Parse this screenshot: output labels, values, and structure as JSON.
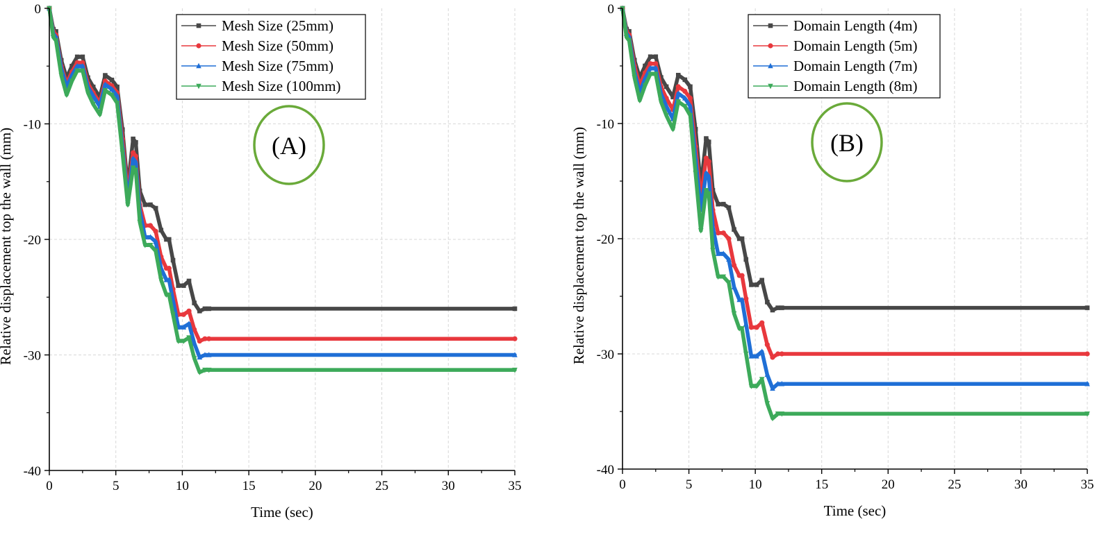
{
  "chart_data": [
    {
      "type": "line",
      "panel_label": "(A)",
      "xlabel": "Time (sec)",
      "ylabel": "Relative displacement top the wall (mm)",
      "xlim": [
        0,
        35
      ],
      "ylim": [
        -40,
        0
      ],
      "xticks": [
        0,
        5,
        10,
        15,
        20,
        25,
        30,
        35
      ],
      "yticks": [
        0,
        -10,
        -20,
        -30,
        -40
      ],
      "grid": true,
      "legend_position": "top-center",
      "series": [
        {
          "name": "Mesh Size (25mm)",
          "color": "#474747",
          "marker": "square",
          "x": [
            0,
            0.3,
            0.5,
            0.9,
            1.3,
            1.7,
            2.1,
            2.5,
            2.9,
            3.3,
            3.8,
            4.2,
            4.7,
            5.1,
            5.5,
            5.9,
            6.3,
            6.5,
            6.8,
            7.2,
            7.6,
            8.0,
            8.4,
            8.8,
            9.0,
            9.3,
            9.7,
            10.1,
            10.5,
            10.9,
            11.3,
            11.7,
            12.0,
            35
          ],
          "y": [
            0,
            -1.8,
            -2.0,
            -4.5,
            -6.0,
            -5.0,
            -4.2,
            -4.2,
            -6.0,
            -6.8,
            -7.7,
            -5.8,
            -6.2,
            -6.8,
            -10.5,
            -15.5,
            -11.3,
            -11.6,
            -15.8,
            -17.0,
            -17.0,
            -17.3,
            -19.2,
            -20.0,
            -20.0,
            -21.8,
            -24.0,
            -24.0,
            -23.6,
            -25.5,
            -26.2,
            -26.0,
            -26.0,
            -26.0
          ]
        },
        {
          "name": "Mesh Size (50mm)",
          "color": "#e8383d",
          "marker": "circle",
          "x": [
            0,
            0.3,
            0.5,
            0.9,
            1.3,
            1.7,
            2.1,
            2.5,
            2.9,
            3.3,
            3.8,
            4.2,
            4.7,
            5.1,
            5.5,
            5.9,
            6.3,
            6.5,
            6.8,
            7.2,
            7.6,
            8.0,
            8.4,
            8.8,
            9.0,
            9.3,
            9.7,
            10.1,
            10.5,
            10.9,
            11.3,
            11.7,
            12.0,
            35
          ],
          "y": [
            0,
            -2.0,
            -2.3,
            -5.0,
            -6.5,
            -5.5,
            -4.7,
            -4.7,
            -6.5,
            -7.3,
            -8.2,
            -6.3,
            -6.7,
            -7.3,
            -11.3,
            -16.0,
            -12.5,
            -12.8,
            -17.0,
            -18.8,
            -18.8,
            -19.3,
            -21.5,
            -22.5,
            -22.5,
            -24.3,
            -26.5,
            -26.5,
            -26.2,
            -27.8,
            -28.8,
            -28.6,
            -28.6,
            -28.6
          ]
        },
        {
          "name": "Mesh Size (75mm)",
          "color": "#1f6fd6",
          "marker": "triangle-up",
          "x": [
            0,
            0.3,
            0.5,
            0.9,
            1.3,
            1.7,
            2.1,
            2.5,
            2.9,
            3.3,
            3.8,
            4.2,
            4.7,
            5.1,
            5.5,
            5.9,
            6.3,
            6.5,
            6.8,
            7.2,
            7.6,
            8.0,
            8.4,
            8.8,
            9.0,
            9.3,
            9.7,
            10.1,
            10.5,
            10.9,
            11.3,
            11.7,
            12.0,
            35
          ],
          "y": [
            0,
            -2.2,
            -2.5,
            -5.2,
            -6.8,
            -5.8,
            -5.0,
            -5.0,
            -6.8,
            -7.6,
            -8.5,
            -6.6,
            -7.0,
            -7.6,
            -12.0,
            -16.5,
            -13.0,
            -13.3,
            -17.5,
            -19.8,
            -19.8,
            -20.2,
            -22.5,
            -23.5,
            -23.5,
            -25.3,
            -27.6,
            -27.6,
            -27.3,
            -29.0,
            -30.2,
            -30.0,
            -30.0,
            -30.0
          ]
        },
        {
          "name": "Mesh Size (100mm)",
          "color": "#3daa5a",
          "marker": "triangle-down",
          "x": [
            0,
            0.3,
            0.5,
            0.9,
            1.3,
            1.7,
            2.1,
            2.5,
            2.9,
            3.3,
            3.8,
            4.2,
            4.7,
            5.1,
            5.5,
            5.9,
            6.3,
            6.5,
            6.8,
            7.2,
            7.6,
            8.0,
            8.4,
            8.8,
            9.0,
            9.3,
            9.7,
            10.1,
            10.5,
            10.9,
            11.3,
            11.7,
            12.0,
            35
          ],
          "y": [
            0,
            -2.5,
            -2.8,
            -5.8,
            -7.5,
            -6.3,
            -5.4,
            -5.4,
            -7.3,
            -8.3,
            -9.2,
            -7.1,
            -7.5,
            -8.2,
            -12.5,
            -17.0,
            -13.8,
            -14.0,
            -18.5,
            -20.5,
            -20.5,
            -21.0,
            -23.5,
            -24.8,
            -24.8,
            -26.5,
            -28.8,
            -28.8,
            -28.5,
            -30.3,
            -31.5,
            -31.3,
            -31.3,
            -31.3
          ]
        }
      ]
    },
    {
      "type": "line",
      "panel_label": "(B)",
      "xlabel": "Time (sec)",
      "ylabel": "Relative displacement top the wall (mm)",
      "xlim": [
        0,
        35
      ],
      "ylim": [
        -40,
        0
      ],
      "xticks": [
        0,
        5,
        10,
        15,
        20,
        25,
        30,
        35
      ],
      "yticks": [
        0,
        -10,
        -20,
        -30,
        -40
      ],
      "grid": true,
      "legend_position": "top-center",
      "series": [
        {
          "name": "Domain Length (4m)",
          "color": "#474747",
          "marker": "square",
          "x": [
            0,
            0.3,
            0.5,
            0.9,
            1.3,
            1.7,
            2.1,
            2.5,
            2.9,
            3.3,
            3.8,
            4.2,
            4.7,
            5.1,
            5.5,
            5.9,
            6.3,
            6.5,
            6.8,
            7.2,
            7.6,
            8.0,
            8.4,
            8.8,
            9.0,
            9.3,
            9.7,
            10.1,
            10.5,
            10.9,
            11.3,
            11.7,
            12.0,
            35
          ],
          "y": [
            0,
            -1.8,
            -2.0,
            -4.5,
            -6.0,
            -5.0,
            -4.2,
            -4.2,
            -6.0,
            -6.8,
            -7.7,
            -5.8,
            -6.2,
            -6.8,
            -10.5,
            -15.5,
            -11.3,
            -11.6,
            -15.8,
            -17.0,
            -17.0,
            -17.3,
            -19.2,
            -20.0,
            -20.0,
            -21.8,
            -24.0,
            -24.0,
            -23.6,
            -25.5,
            -26.2,
            -26.0,
            -26.0,
            -26.0
          ]
        },
        {
          "name": "Domain Length (5m)",
          "color": "#e8383d",
          "marker": "circle",
          "x": [
            0,
            0.3,
            0.5,
            0.9,
            1.3,
            1.7,
            2.1,
            2.5,
            2.9,
            3.3,
            3.8,
            4.2,
            4.7,
            5.1,
            5.5,
            5.9,
            6.3,
            6.5,
            6.8,
            7.2,
            7.6,
            8.0,
            8.4,
            8.8,
            9.0,
            9.3,
            9.7,
            10.1,
            10.5,
            10.9,
            11.3,
            11.7,
            12.0,
            35
          ],
          "y": [
            0,
            -2.0,
            -2.3,
            -5.0,
            -6.7,
            -5.6,
            -4.8,
            -4.8,
            -6.8,
            -7.8,
            -8.8,
            -6.8,
            -7.2,
            -7.8,
            -12.0,
            -16.5,
            -13.0,
            -13.3,
            -17.5,
            -19.5,
            -19.5,
            -20.0,
            -22.3,
            -23.2,
            -23.2,
            -25.2,
            -27.7,
            -27.7,
            -27.3,
            -29.2,
            -30.3,
            -30.0,
            -30.0,
            -30.0
          ]
        },
        {
          "name": "Domain Length (7m)",
          "color": "#1f6fd6",
          "marker": "triangle-up",
          "x": [
            0,
            0.3,
            0.5,
            0.9,
            1.3,
            1.7,
            2.1,
            2.5,
            2.9,
            3.3,
            3.8,
            4.2,
            4.7,
            5.1,
            5.5,
            5.9,
            6.3,
            6.5,
            6.8,
            7.2,
            7.6,
            8.0,
            8.4,
            8.8,
            9.0,
            9.3,
            9.7,
            10.1,
            10.5,
            10.9,
            11.3,
            11.7,
            12.0,
            35
          ],
          "y": [
            0,
            -2.2,
            -2.5,
            -5.5,
            -7.3,
            -6.1,
            -5.2,
            -5.2,
            -7.4,
            -8.5,
            -9.6,
            -7.4,
            -7.8,
            -8.5,
            -13.0,
            -17.5,
            -14.3,
            -14.6,
            -19.0,
            -21.3,
            -21.3,
            -21.8,
            -24.2,
            -25.3,
            -25.3,
            -27.4,
            -30.2,
            -30.2,
            -29.8,
            -31.8,
            -33.0,
            -32.6,
            -32.6,
            -32.6
          ]
        },
        {
          "name": "Domain Length (8m)",
          "color": "#3daa5a",
          "marker": "triangle-down",
          "x": [
            0,
            0.3,
            0.5,
            0.9,
            1.3,
            1.7,
            2.1,
            2.5,
            2.9,
            3.3,
            3.8,
            4.2,
            4.7,
            5.1,
            5.5,
            5.9,
            6.3,
            6.5,
            6.8,
            7.2,
            7.6,
            8.0,
            8.4,
            8.8,
            9.0,
            9.3,
            9.7,
            10.1,
            10.5,
            10.9,
            11.3,
            11.7,
            12.0,
            35
          ],
          "y": [
            0,
            -2.5,
            -2.8,
            -6.0,
            -8.0,
            -6.7,
            -5.7,
            -5.7,
            -8.1,
            -9.3,
            -10.5,
            -8.1,
            -8.5,
            -9.3,
            -14.3,
            -19.3,
            -15.8,
            -16.1,
            -21.0,
            -23.3,
            -23.3,
            -23.8,
            -26.5,
            -27.8,
            -27.8,
            -30.0,
            -32.8,
            -32.8,
            -32.2,
            -34.3,
            -35.6,
            -35.2,
            -35.2,
            -35.2
          ]
        }
      ]
    }
  ]
}
